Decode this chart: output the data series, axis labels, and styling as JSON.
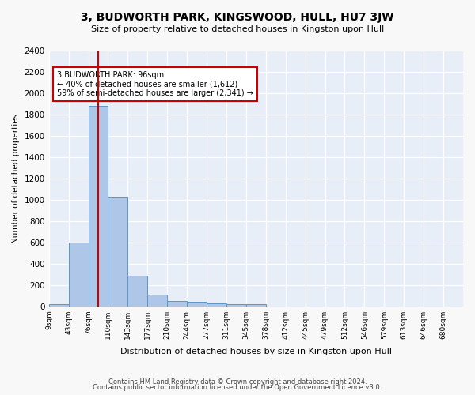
{
  "title": "3, BUDWORTH PARK, KINGSWOOD, HULL, HU7 3JW",
  "subtitle": "Size of property relative to detached houses in Kingston upon Hull",
  "xlabel": "Distribution of detached houses by size in Kingston upon Hull",
  "ylabel": "Number of detached properties",
  "bar_values": [
    20,
    600,
    1880,
    1030,
    290,
    110,
    50,
    45,
    30,
    20,
    20,
    0,
    0,
    0,
    0,
    0,
    0,
    0,
    0,
    0,
    0
  ],
  "bin_labels": [
    "9sqm",
    "43sqm",
    "76sqm",
    "110sqm",
    "143sqm",
    "177sqm",
    "210sqm",
    "244sqm",
    "277sqm",
    "311sqm",
    "345sqm",
    "378sqm",
    "412sqm",
    "445sqm",
    "479sqm",
    "512sqm",
    "546sqm",
    "579sqm",
    "613sqm",
    "646sqm",
    "680sqm"
  ],
  "bar_color": "#aec6e8",
  "bar_edgecolor": "#5a96c8",
  "bg_color": "#e8eef8",
  "grid_color": "#ffffff",
  "property_label": "3 BUDWORTH PARK: 96sqm",
  "annotation_line1": "← 40% of detached houses are smaller (1,612)",
  "annotation_line2": "59% of semi-detached houses are larger (2,341) →",
  "marker_bin_index": 2,
  "ylim": [
    0,
    2400
  ],
  "yticks": [
    0,
    200,
    400,
    600,
    800,
    1000,
    1200,
    1400,
    1600,
    1800,
    2000,
    2200,
    2400
  ],
  "footer1": "Contains HM Land Registry data © Crown copyright and database right 2024.",
  "footer2": "Contains public sector information licensed under the Open Government Licence v3.0.",
  "annotation_box_color": "#cc0000",
  "red_line_color": "#cc0000"
}
